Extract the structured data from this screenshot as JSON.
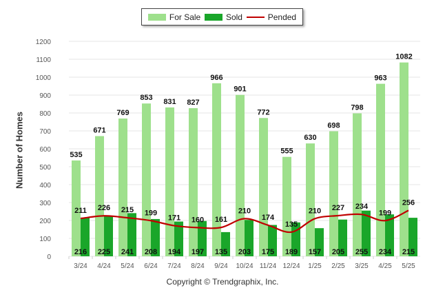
{
  "legend": {
    "for_sale": "For Sale",
    "sold": "Sold",
    "pended": "Pended"
  },
  "colors": {
    "for_sale": "#9ee08c",
    "sold": "#1aa62a",
    "pended": "#c00000",
    "grid": "#e6e6e6",
    "axis_text": "#555555"
  },
  "footer": {
    "copyright": "Copyright © Trendgraphix, Inc."
  },
  "chart_data": {
    "type": "bar",
    "ylabel": "Number of Homes",
    "xlabel": "",
    "ylim": [
      0,
      1200
    ],
    "yticks": [
      0,
      100,
      200,
      300,
      400,
      500,
      600,
      700,
      800,
      900,
      1000,
      1100,
      1200
    ],
    "grid": true,
    "legend_position": "top-center",
    "categories": [
      "3/24",
      "4/24",
      "5/24",
      "6/24",
      "7/24",
      "8/24",
      "9/24",
      "10/24",
      "11/24",
      "12/24",
      "1/25",
      "2/25",
      "3/25",
      "4/25",
      "5/25"
    ],
    "series": [
      {
        "name": "For Sale",
        "type": "bar",
        "values": [
          535,
          671,
          769,
          853,
          831,
          827,
          966,
          901,
          772,
          555,
          630,
          698,
          798,
          963,
          1082
        ]
      },
      {
        "name": "Sold",
        "type": "bar",
        "values": [
          216,
          225,
          241,
          208,
          194,
          197,
          135,
          203,
          175,
          189,
          157,
          205,
          255,
          234,
          215
        ]
      },
      {
        "name": "Pended",
        "type": "line",
        "values": [
          211,
          226,
          215,
          199,
          171,
          160,
          161,
          210,
          174,
          135,
          210,
          227,
          234,
          199,
          256
        ]
      }
    ]
  }
}
